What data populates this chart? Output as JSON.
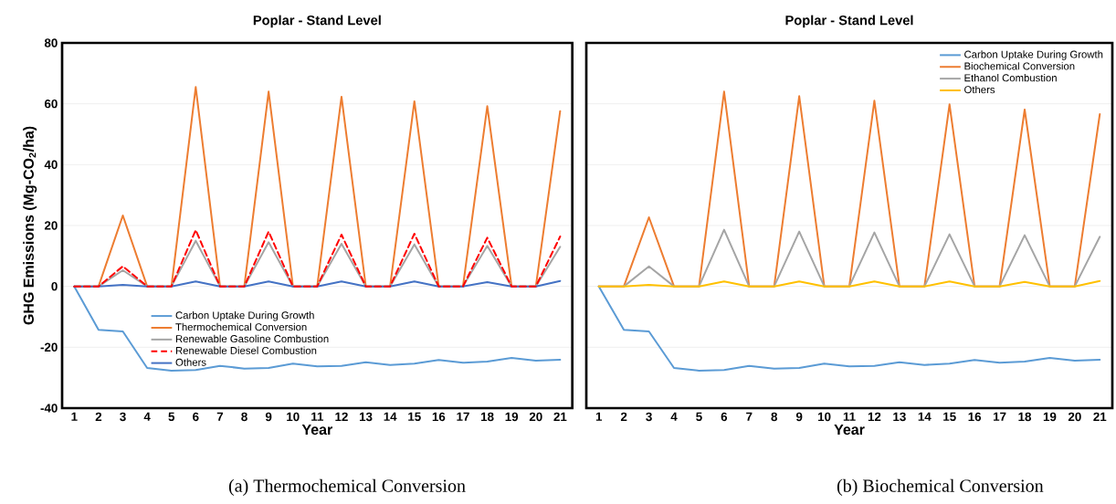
{
  "chart_data": [
    {
      "type": "line",
      "title": "Poplar - Stand Level",
      "xlabel": "Year",
      "ylabel": "GHG Emissions (Mg-CO$_{2}$/ha)",
      "categories": [
        "1",
        "2",
        "3",
        "4",
        "5",
        "6",
        "7",
        "8",
        "9",
        "10",
        "11",
        "12",
        "13",
        "14",
        "15",
        "16",
        "17",
        "18",
        "19",
        "20",
        "21"
      ],
      "ylim": [
        -40,
        80
      ],
      "yticks": [
        -40,
        -20,
        0,
        20,
        40,
        60,
        80
      ],
      "grid": "y",
      "legend": "bottom",
      "annotations": [
        "(a) Thermochemical Conversion"
      ],
      "series": [
        {
          "name": "Carbon Uptake During Growth",
          "color": "#5b9bd5",
          "values": [
            0,
            -14.3,
            -14.8,
            -26.8,
            -27.7,
            -27.5,
            -26.1,
            -27.0,
            -26.8,
            -25.4,
            -26.3,
            -26.1,
            -24.9,
            -25.8,
            -25.4,
            -24.2,
            -25.1,
            -24.7,
            -23.5,
            -24.4,
            -24.1
          ]
        },
        {
          "name": "Thermochemical Conversion",
          "color": "#ed7d31",
          "values": [
            0,
            0,
            23.3,
            0,
            0,
            65.5,
            0,
            0,
            64,
            0,
            0,
            62.3,
            0,
            0,
            60.8,
            0,
            0,
            59.2,
            0,
            0,
            57.6
          ]
        },
        {
          "name": "Renewable Gasoline Combustion",
          "color": "#a5a5a5",
          "values": [
            0,
            0,
            5.3,
            0,
            0,
            15,
            0,
            0,
            14.5,
            0,
            0,
            14,
            0,
            0,
            13.8,
            0,
            0,
            13.3,
            0,
            0,
            13
          ]
        },
        {
          "name": "Renewable Diesel Combustion",
          "color": "#ff0000",
          "line_style": "dashed",
          "values": [
            0,
            0,
            6.6,
            0,
            0,
            18.5,
            0,
            0,
            18,
            0,
            0,
            17,
            0,
            0,
            17.3,
            0,
            0,
            16,
            0,
            0,
            16.4
          ]
        },
        {
          "name": "Others",
          "color": "#4472c4",
          "values": [
            0,
            0,
            0.5,
            0,
            0,
            1.6,
            0,
            0,
            1.6,
            0,
            0,
            1.6,
            0,
            0,
            1.6,
            0,
            0,
            1.4,
            0,
            0,
            1.8
          ]
        }
      ]
    },
    {
      "type": "line",
      "title": "Poplar - Stand Level",
      "xlabel": "Year",
      "categories": [
        "1",
        "2",
        "3",
        "4",
        "5",
        "6",
        "7",
        "8",
        "9",
        "10",
        "11",
        "12",
        "13",
        "14",
        "15",
        "16",
        "17",
        "18",
        "19",
        "20",
        "21"
      ],
      "ylim": [
        -40,
        80
      ],
      "yticks": [
        -40,
        -20,
        0,
        20,
        40,
        60,
        80
      ],
      "grid": "y",
      "legend": "top right",
      "tick_labels": "x",
      "annotations": [
        "(b) Biochemical Conversion"
      ],
      "series": [
        {
          "name": "Carbon Uptake During Growth",
          "color": "#5b9bd5",
          "values": [
            0,
            -14.3,
            -14.8,
            -26.8,
            -27.7,
            -27.5,
            -26.1,
            -27.0,
            -26.8,
            -25.4,
            -26.3,
            -26.1,
            -24.9,
            -25.8,
            -25.4,
            -24.2,
            -25.1,
            -24.7,
            -23.5,
            -24.4,
            -24.1
          ]
        },
        {
          "name": "Biochemical Conversion",
          "color": "#ed7d31",
          "values": [
            0,
            0,
            22.7,
            0,
            0,
            64,
            0,
            0,
            62.5,
            0,
            0,
            61,
            0,
            0,
            59.8,
            0,
            0,
            58.1,
            0,
            0,
            56.6
          ]
        },
        {
          "name": "Ethanol Combustion",
          "color": "#a5a5a5",
          "values": [
            0,
            0,
            6.6,
            0,
            0,
            18.6,
            0,
            0,
            18,
            0,
            0,
            17.7,
            0,
            0,
            17.1,
            0,
            0,
            16.8,
            0,
            0,
            16.3
          ]
        },
        {
          "name": "Others",
          "color": "#ffc000",
          "values": [
            0,
            0,
            0.5,
            0,
            0,
            1.6,
            0,
            0,
            1.6,
            0,
            0,
            1.6,
            0,
            0,
            1.6,
            0,
            0,
            1.5,
            0,
            0,
            1.8
          ]
        }
      ]
    }
  ]
}
